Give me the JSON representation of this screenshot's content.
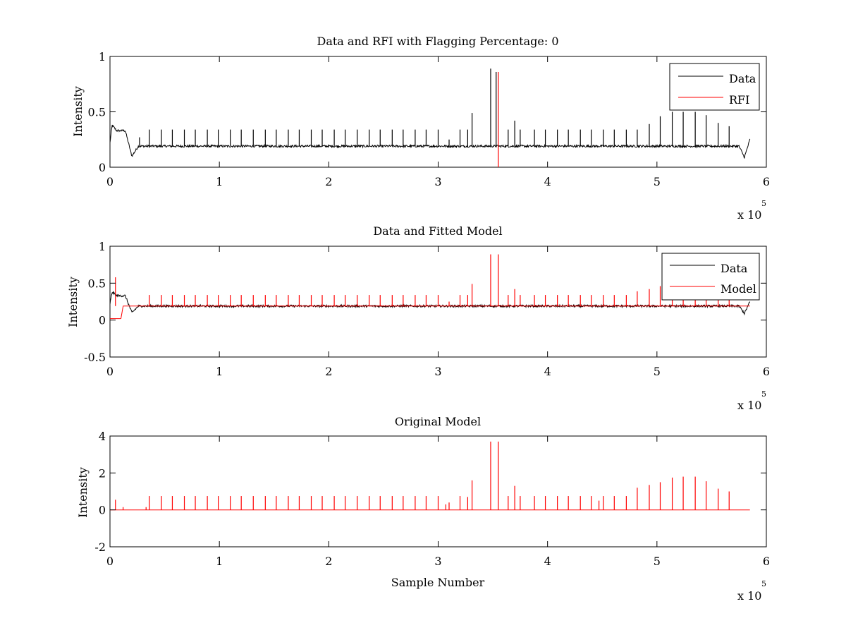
{
  "colors": {
    "data": "#000000",
    "rfi": "#ff0000",
    "model": "#ff0000",
    "axes": "#000000",
    "background": "#ffffff"
  },
  "chart_data": [
    {
      "type": "line",
      "title": "Data and RFI with Flagging Percentage: 0",
      "xlabel": "",
      "ylabel": "Intensity",
      "xlim": [
        0,
        6
      ],
      "ylim": [
        0,
        1
      ],
      "xticks": [
        "0",
        "1",
        "2",
        "3",
        "4",
        "5",
        "6"
      ],
      "yticks": [
        "0",
        "0.5",
        "1"
      ],
      "x_multiplier": {
        "prefix": "x 10",
        "exponent": "5"
      },
      "legend": {
        "position": "top-right",
        "entries": [
          "Data",
          "RFI"
        ]
      },
      "series": [
        {
          "name": "Data",
          "color": "#000000",
          "baseline": 0.19,
          "features": [
            {
              "x": 0.0,
              "y": 0.22
            },
            {
              "x": 0.02,
              "y": 0.38
            },
            {
              "x": 0.06,
              "y": 0.33
            },
            {
              "x": 0.14,
              "y": 0.33
            },
            {
              "x": 0.2,
              "y": 0.1
            },
            {
              "x": 0.26,
              "y": 0.19
            },
            {
              "x": 5.75,
              "y": 0.19
            },
            {
              "x": 5.8,
              "y": 0.09
            },
            {
              "x": 5.85,
              "y": 0.25
            }
          ],
          "spikes": [
            {
              "x": 0.27,
              "y": 0.27
            },
            {
              "x": 0.36,
              "y": 0.34
            },
            {
              "x": 0.47,
              "y": 0.34
            },
            {
              "x": 0.57,
              "y": 0.34
            },
            {
              "x": 0.68,
              "y": 0.34
            },
            {
              "x": 0.78,
              "y": 0.34
            },
            {
              "x": 0.89,
              "y": 0.34
            },
            {
              "x": 0.99,
              "y": 0.34
            },
            {
              "x": 1.1,
              "y": 0.34
            },
            {
              "x": 1.2,
              "y": 0.34
            },
            {
              "x": 1.31,
              "y": 0.34
            },
            {
              "x": 1.42,
              "y": 0.34
            },
            {
              "x": 1.52,
              "y": 0.34
            },
            {
              "x": 1.63,
              "y": 0.34
            },
            {
              "x": 1.73,
              "y": 0.34
            },
            {
              "x": 1.84,
              "y": 0.34
            },
            {
              "x": 1.94,
              "y": 0.34
            },
            {
              "x": 2.05,
              "y": 0.34
            },
            {
              "x": 2.15,
              "y": 0.34
            },
            {
              "x": 2.26,
              "y": 0.34
            },
            {
              "x": 2.37,
              "y": 0.34
            },
            {
              "x": 2.47,
              "y": 0.34
            },
            {
              "x": 2.58,
              "y": 0.34
            },
            {
              "x": 2.68,
              "y": 0.34
            },
            {
              "x": 2.79,
              "y": 0.34
            },
            {
              "x": 2.89,
              "y": 0.34
            },
            {
              "x": 3.0,
              "y": 0.34
            },
            {
              "x": 3.1,
              "y": 0.25
            },
            {
              "x": 3.2,
              "y": 0.34
            },
            {
              "x": 3.27,
              "y": 0.34
            },
            {
              "x": 3.31,
              "y": 0.49
            },
            {
              "x": 3.48,
              "y": 0.89
            },
            {
              "x": 3.53,
              "y": 0.86
            },
            {
              "x": 3.64,
              "y": 0.34
            },
            {
              "x": 3.7,
              "y": 0.42
            },
            {
              "x": 3.75,
              "y": 0.34
            },
            {
              "x": 3.88,
              "y": 0.34
            },
            {
              "x": 3.98,
              "y": 0.34
            },
            {
              "x": 4.09,
              "y": 0.34
            },
            {
              "x": 4.19,
              "y": 0.34
            },
            {
              "x": 4.3,
              "y": 0.34
            },
            {
              "x": 4.4,
              "y": 0.34
            },
            {
              "x": 4.51,
              "y": 0.34
            },
            {
              "x": 4.61,
              "y": 0.34
            },
            {
              "x": 4.72,
              "y": 0.34
            },
            {
              "x": 4.82,
              "y": 0.34
            },
            {
              "x": 4.93,
              "y": 0.39
            },
            {
              "x": 5.03,
              "y": 0.46
            },
            {
              "x": 5.14,
              "y": 0.5
            },
            {
              "x": 5.24,
              "y": 0.5
            },
            {
              "x": 5.35,
              "y": 0.5
            },
            {
              "x": 5.45,
              "y": 0.47
            },
            {
              "x": 5.56,
              "y": 0.4
            },
            {
              "x": 5.66,
              "y": 0.37
            }
          ]
        },
        {
          "name": "RFI",
          "color": "#ff0000",
          "spikes": [
            {
              "x": 3.55,
              "y": 0.86
            }
          ]
        }
      ]
    },
    {
      "type": "line",
      "title": "Data and Fitted Model",
      "xlabel": "",
      "ylabel": "Intensity",
      "xlim": [
        0,
        6
      ],
      "ylim": [
        -0.5,
        1
      ],
      "xticks": [
        "0",
        "1",
        "2",
        "3",
        "4",
        "5",
        "6"
      ],
      "yticks": [
        "-0.5",
        "0",
        "0.5",
        "1"
      ],
      "x_multiplier": {
        "prefix": "x 10",
        "exponent": "5"
      },
      "legend": {
        "position": "top-right",
        "entries": [
          "Data",
          "Model"
        ]
      },
      "series": [
        {
          "name": "Data",
          "color": "#000000",
          "baseline": 0.19,
          "features": [
            {
              "x": 0.0,
              "y": 0.22
            },
            {
              "x": 0.02,
              "y": 0.38
            },
            {
              "x": 0.06,
              "y": 0.33
            },
            {
              "x": 0.14,
              "y": 0.33
            },
            {
              "x": 0.2,
              "y": 0.1
            },
            {
              "x": 0.26,
              "y": 0.19
            },
            {
              "x": 5.75,
              "y": 0.19
            },
            {
              "x": 5.8,
              "y": 0.09
            },
            {
              "x": 5.85,
              "y": 0.25
            }
          ]
        },
        {
          "name": "Model",
          "color": "#ff0000",
          "baseline": 0.19,
          "features": [
            {
              "x": 0.0,
              "y": 0.02
            },
            {
              "x": 0.1,
              "y": 0.02
            },
            {
              "x": 0.12,
              "y": 0.19
            },
            {
              "x": 5.85,
              "y": 0.19
            }
          ],
          "spikes": [
            {
              "x": 0.05,
              "y": 0.58
            },
            {
              "x": 0.36,
              "y": 0.34
            },
            {
              "x": 0.47,
              "y": 0.34
            },
            {
              "x": 0.57,
              "y": 0.34
            },
            {
              "x": 0.68,
              "y": 0.34
            },
            {
              "x": 0.78,
              "y": 0.34
            },
            {
              "x": 0.89,
              "y": 0.34
            },
            {
              "x": 0.99,
              "y": 0.34
            },
            {
              "x": 1.1,
              "y": 0.34
            },
            {
              "x": 1.2,
              "y": 0.34
            },
            {
              "x": 1.31,
              "y": 0.34
            },
            {
              "x": 1.42,
              "y": 0.34
            },
            {
              "x": 1.52,
              "y": 0.34
            },
            {
              "x": 1.63,
              "y": 0.34
            },
            {
              "x": 1.73,
              "y": 0.34
            },
            {
              "x": 1.84,
              "y": 0.34
            },
            {
              "x": 1.94,
              "y": 0.34
            },
            {
              "x": 2.05,
              "y": 0.34
            },
            {
              "x": 2.15,
              "y": 0.34
            },
            {
              "x": 2.26,
              "y": 0.34
            },
            {
              "x": 2.37,
              "y": 0.34
            },
            {
              "x": 2.47,
              "y": 0.34
            },
            {
              "x": 2.58,
              "y": 0.34
            },
            {
              "x": 2.68,
              "y": 0.34
            },
            {
              "x": 2.79,
              "y": 0.34
            },
            {
              "x": 2.89,
              "y": 0.34
            },
            {
              "x": 3.0,
              "y": 0.34
            },
            {
              "x": 3.1,
              "y": 0.25
            },
            {
              "x": 3.2,
              "y": 0.34
            },
            {
              "x": 3.27,
              "y": 0.34
            },
            {
              "x": 3.31,
              "y": 0.49
            },
            {
              "x": 3.48,
              "y": 0.89
            },
            {
              "x": 3.55,
              "y": 0.89
            },
            {
              "x": 3.64,
              "y": 0.34
            },
            {
              "x": 3.7,
              "y": 0.42
            },
            {
              "x": 3.75,
              "y": 0.34
            },
            {
              "x": 3.88,
              "y": 0.34
            },
            {
              "x": 3.98,
              "y": 0.34
            },
            {
              "x": 4.09,
              "y": 0.34
            },
            {
              "x": 4.19,
              "y": 0.34
            },
            {
              "x": 4.3,
              "y": 0.34
            },
            {
              "x": 4.4,
              "y": 0.34
            },
            {
              "x": 4.51,
              "y": 0.34
            },
            {
              "x": 4.61,
              "y": 0.34
            },
            {
              "x": 4.72,
              "y": 0.34
            },
            {
              "x": 4.82,
              "y": 0.39
            },
            {
              "x": 4.93,
              "y": 0.42
            },
            {
              "x": 5.03,
              "y": 0.46
            },
            {
              "x": 5.14,
              "y": 0.5
            },
            {
              "x": 5.24,
              "y": 0.5
            },
            {
              "x": 5.35,
              "y": 0.5
            },
            {
              "x": 5.45,
              "y": 0.47
            },
            {
              "x": 5.56,
              "y": 0.4
            },
            {
              "x": 5.66,
              "y": 0.37
            }
          ]
        }
      ]
    },
    {
      "type": "line",
      "title": "Original Model",
      "xlabel": "Sample Number",
      "ylabel": "Intensity",
      "xlim": [
        0,
        6
      ],
      "ylim": [
        -2,
        4
      ],
      "xticks": [
        "0",
        "1",
        "2",
        "3",
        "4",
        "5",
        "6"
      ],
      "yticks": [
        "-2",
        "0",
        "2",
        "4"
      ],
      "x_multiplier": {
        "prefix": "x 10",
        "exponent": "5"
      },
      "series": [
        {
          "name": "Model",
          "color": "#ff0000",
          "baseline": 0.0,
          "features": [
            {
              "x": 0.0,
              "y": 0.0
            },
            {
              "x": 5.85,
              "y": 0.0
            }
          ],
          "spikes": [
            {
              "x": 0.05,
              "y": 0.55
            },
            {
              "x": 0.12,
              "y": 0.15
            },
            {
              "x": 0.33,
              "y": 0.15
            },
            {
              "x": 0.36,
              "y": 0.75
            },
            {
              "x": 0.47,
              "y": 0.75
            },
            {
              "x": 0.57,
              "y": 0.75
            },
            {
              "x": 0.68,
              "y": 0.75
            },
            {
              "x": 0.78,
              "y": 0.75
            },
            {
              "x": 0.89,
              "y": 0.75
            },
            {
              "x": 0.99,
              "y": 0.75
            },
            {
              "x": 1.1,
              "y": 0.75
            },
            {
              "x": 1.2,
              "y": 0.75
            },
            {
              "x": 1.31,
              "y": 0.75
            },
            {
              "x": 1.42,
              "y": 0.75
            },
            {
              "x": 1.52,
              "y": 0.75
            },
            {
              "x": 1.63,
              "y": 0.75
            },
            {
              "x": 1.73,
              "y": 0.75
            },
            {
              "x": 1.84,
              "y": 0.75
            },
            {
              "x": 1.94,
              "y": 0.75
            },
            {
              "x": 2.05,
              "y": 0.75
            },
            {
              "x": 2.15,
              "y": 0.75
            },
            {
              "x": 2.26,
              "y": 0.75
            },
            {
              "x": 2.37,
              "y": 0.75
            },
            {
              "x": 2.47,
              "y": 0.75
            },
            {
              "x": 2.58,
              "y": 0.75
            },
            {
              "x": 2.68,
              "y": 0.75
            },
            {
              "x": 2.79,
              "y": 0.75
            },
            {
              "x": 2.89,
              "y": 0.75
            },
            {
              "x": 3.0,
              "y": 0.75
            },
            {
              "x": 3.07,
              "y": 0.3
            },
            {
              "x": 3.1,
              "y": 0.4
            },
            {
              "x": 3.2,
              "y": 0.75
            },
            {
              "x": 3.27,
              "y": 0.7
            },
            {
              "x": 3.31,
              "y": 1.6
            },
            {
              "x": 3.48,
              "y": 3.7
            },
            {
              "x": 3.55,
              "y": 3.7
            },
            {
              "x": 3.64,
              "y": 0.75
            },
            {
              "x": 3.7,
              "y": 1.3
            },
            {
              "x": 3.75,
              "y": 0.75
            },
            {
              "x": 3.88,
              "y": 0.75
            },
            {
              "x": 3.98,
              "y": 0.75
            },
            {
              "x": 4.09,
              "y": 0.75
            },
            {
              "x": 4.19,
              "y": 0.75
            },
            {
              "x": 4.3,
              "y": 0.75
            },
            {
              "x": 4.4,
              "y": 0.75
            },
            {
              "x": 4.47,
              "y": 0.5
            },
            {
              "x": 4.51,
              "y": 0.75
            },
            {
              "x": 4.61,
              "y": 0.75
            },
            {
              "x": 4.72,
              "y": 0.75
            },
            {
              "x": 4.82,
              "y": 1.2
            },
            {
              "x": 4.93,
              "y": 1.35
            },
            {
              "x": 5.03,
              "y": 1.5
            },
            {
              "x": 5.14,
              "y": 1.75
            },
            {
              "x": 5.24,
              "y": 1.8
            },
            {
              "x": 5.35,
              "y": 1.8
            },
            {
              "x": 5.45,
              "y": 1.55
            },
            {
              "x": 5.56,
              "y": 1.15
            },
            {
              "x": 5.66,
              "y": 1.0
            }
          ]
        }
      ]
    }
  ]
}
